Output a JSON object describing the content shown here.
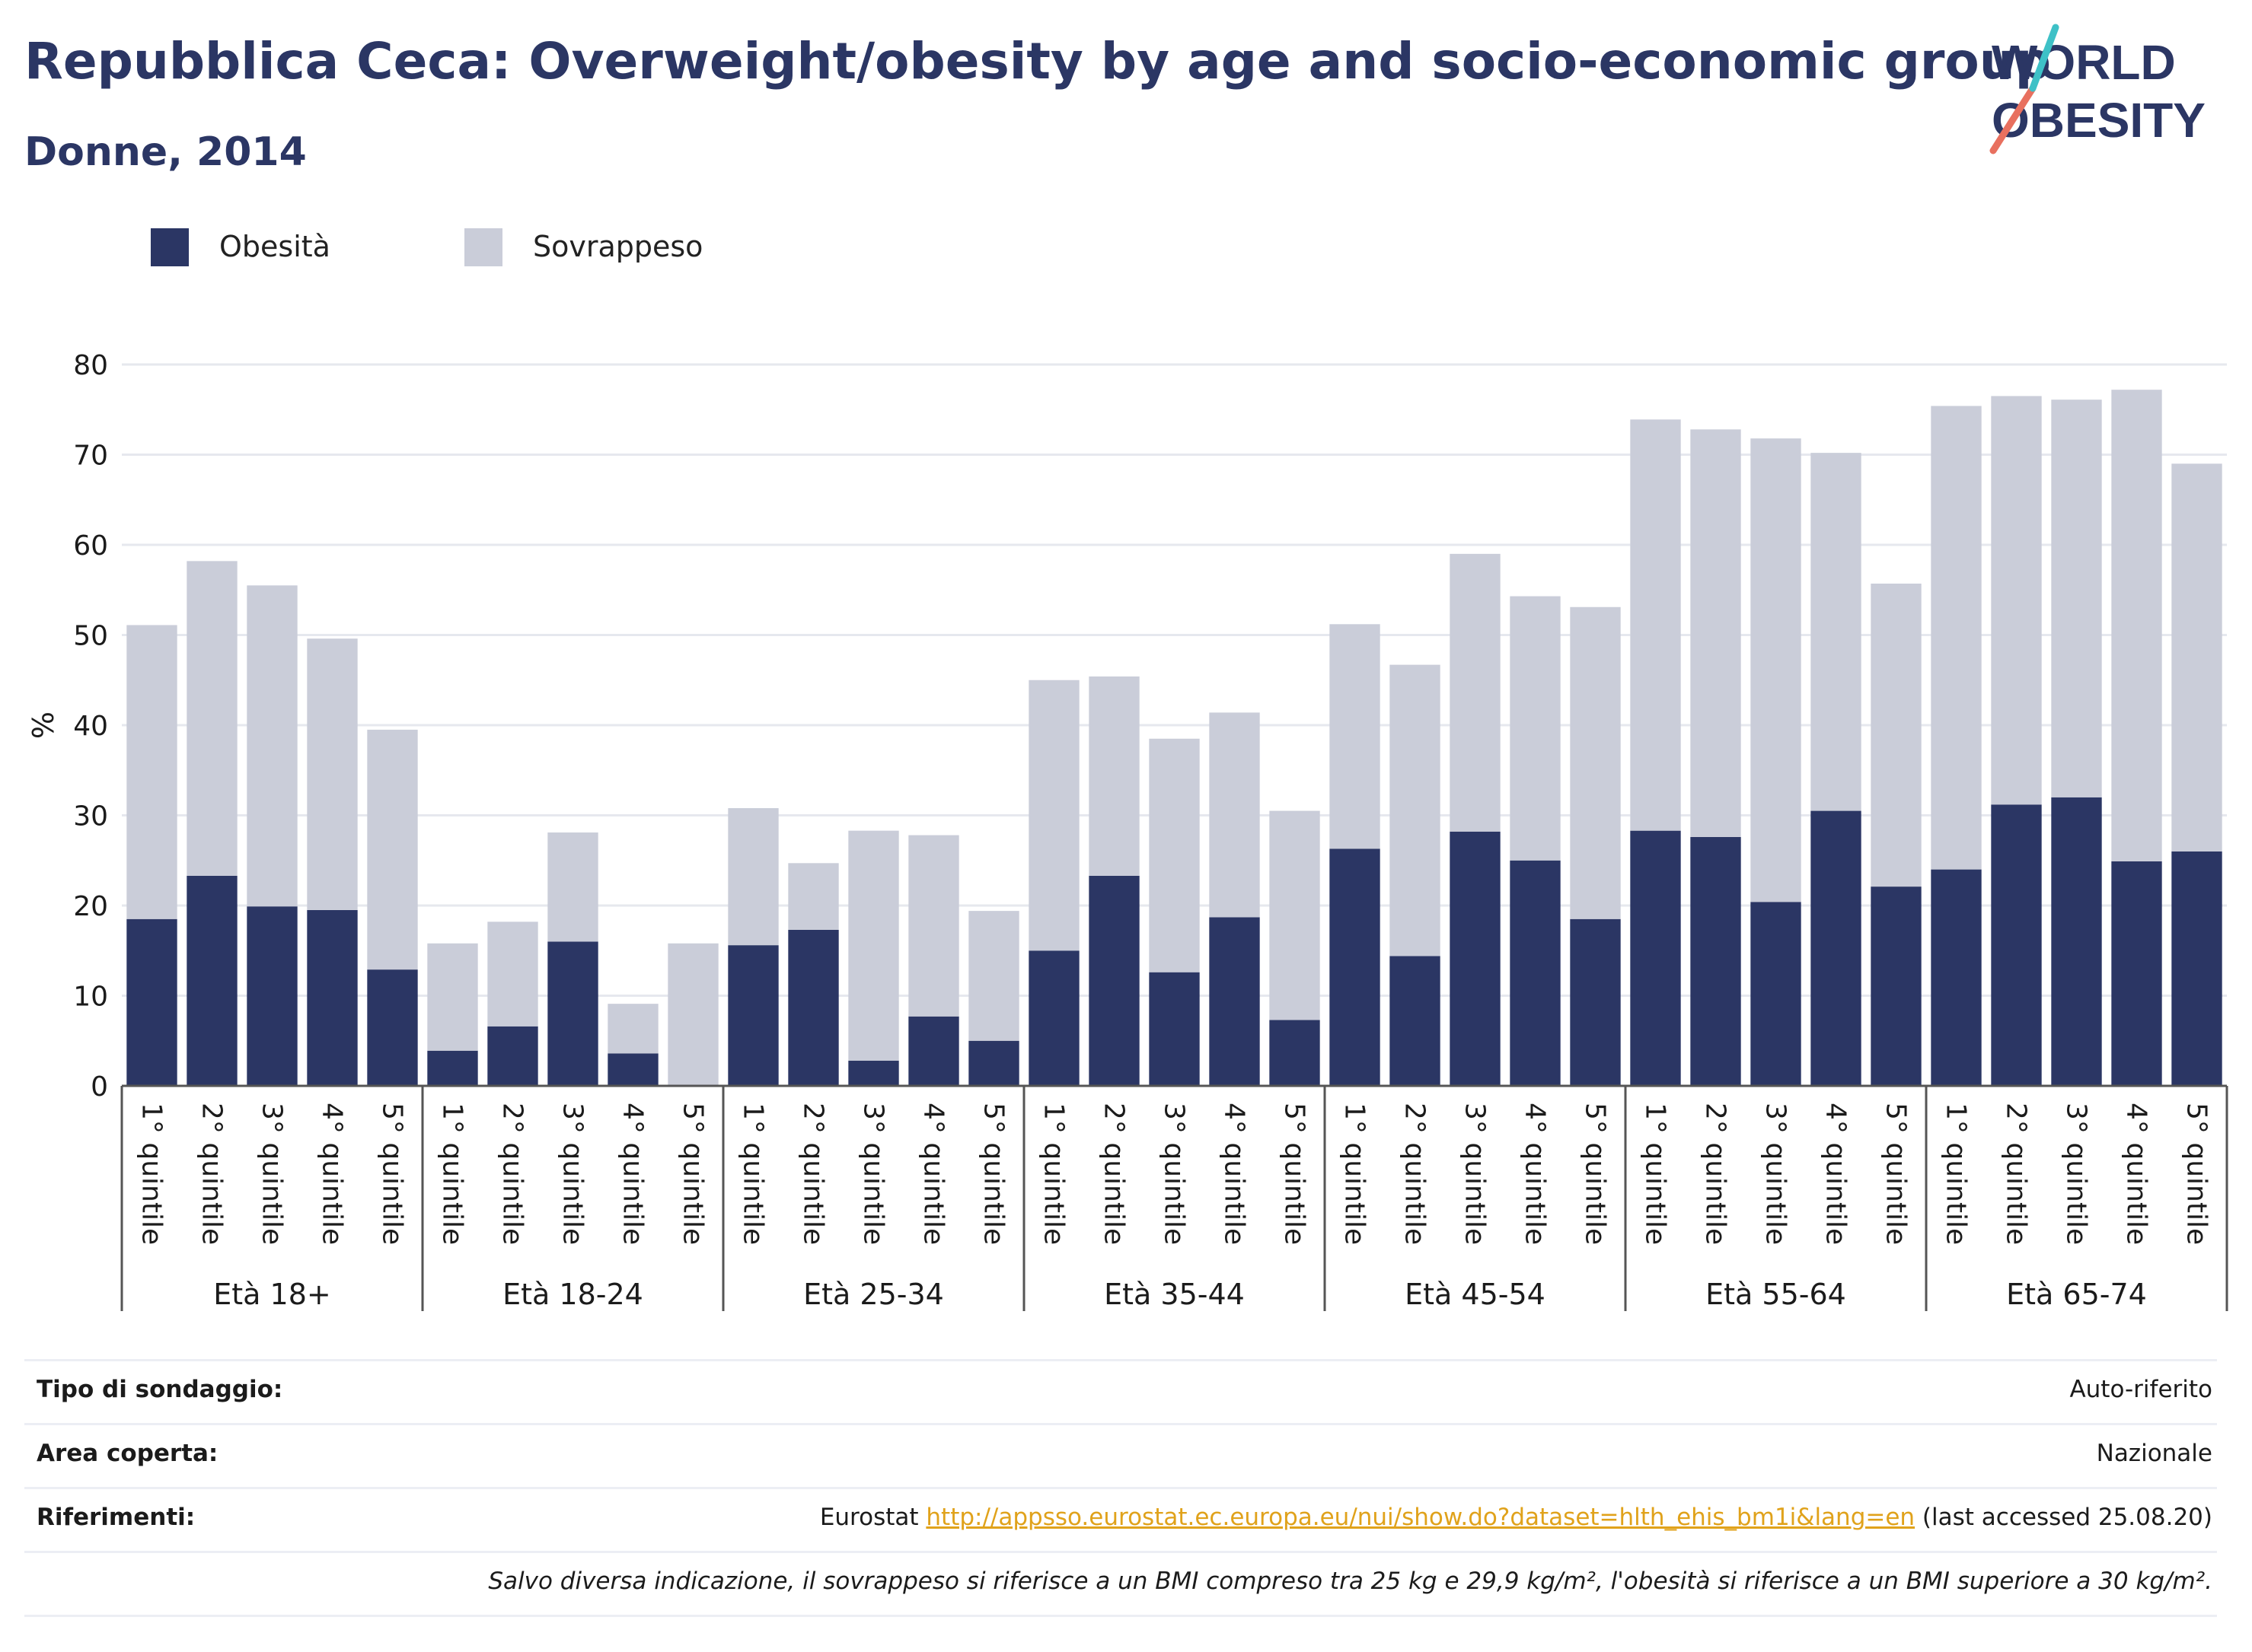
{
  "header": {
    "title": "Repubblica Ceca: Overweight/obesity by age and socio-economic group",
    "subtitle": "Donne, 2014"
  },
  "logo": {
    "line1": "WORLD",
    "line2": "OBESITY",
    "colors": {
      "text": "#2b3664",
      "slash_bottom": "#e8705f",
      "slash_top": "#3ec1c7"
    }
  },
  "colors": {
    "obesity": "#2b3664",
    "overweight": "#cacdd9",
    "grid": "#e6e8ee",
    "text": "#1b1b1b",
    "link": "#e0a21b"
  },
  "chart_data": {
    "type": "bar",
    "stacked": true,
    "ylabel": "%",
    "ylim": [
      0,
      80
    ],
    "yticks": [
      0,
      10,
      20,
      30,
      40,
      50,
      60,
      70,
      80
    ],
    "grid": true,
    "legend_position": "top-left",
    "groups": [
      "Età 18+",
      "Età 18-24",
      "Età 25-34",
      "Età 35-44",
      "Età 45-54",
      "Età 55-64",
      "Età 65-74"
    ],
    "categories": [
      "1° quintile",
      "2° quintile",
      "3° quintile",
      "4° quintile",
      "5° quintile"
    ],
    "series": [
      {
        "name": "Obesità",
        "values": [
          [
            18.5,
            23.3,
            19.9,
            19.5,
            12.9
          ],
          [
            3.9,
            6.6,
            16.0,
            3.6,
            0.0
          ],
          [
            15.6,
            17.3,
            2.8,
            7.7,
            5.0
          ],
          [
            15.0,
            23.3,
            12.6,
            18.7,
            7.3
          ],
          [
            26.3,
            14.4,
            28.2,
            25.0,
            18.5
          ],
          [
            28.3,
            27.6,
            20.4,
            30.5,
            22.1
          ],
          [
            24.0,
            31.2,
            32.0,
            24.9,
            26.0
          ]
        ]
      },
      {
        "name": "Sovrappeso",
        "values": [
          [
            32.6,
            34.9,
            35.6,
            30.1,
            26.6
          ],
          [
            11.9,
            11.6,
            12.1,
            5.5,
            15.8
          ],
          [
            15.2,
            7.4,
            25.5,
            20.1,
            14.4
          ],
          [
            30.0,
            22.1,
            25.9,
            22.7,
            23.2
          ],
          [
            24.9,
            32.3,
            30.8,
            29.3,
            34.6
          ],
          [
            45.6,
            45.2,
            51.4,
            39.7,
            33.6
          ],
          [
            51.4,
            45.3,
            44.1,
            52.3,
            43.0
          ]
        ]
      }
    ]
  },
  "meta": {
    "survey_type": {
      "label": "Tipo di sondaggio:",
      "value": "Auto-riferito"
    },
    "area": {
      "label": "Area coperta:",
      "value": "Nazionale"
    },
    "references": {
      "label": "Riferimenti:",
      "prefix": "Eurostat ",
      "link": "http://appsso.eurostat.ec.europa.eu/nui/show.do?dataset=hlth_ehis_bm1i&lang=en",
      "suffix": " (last accessed 25.08.20)"
    },
    "note": "Salvo diversa indicazione, il sovrappeso si riferisce a un BMI compreso tra 25 kg e 29,9 kg/m², l'obesità si riferisce a un BMI superiore a 30 kg/m²."
  }
}
